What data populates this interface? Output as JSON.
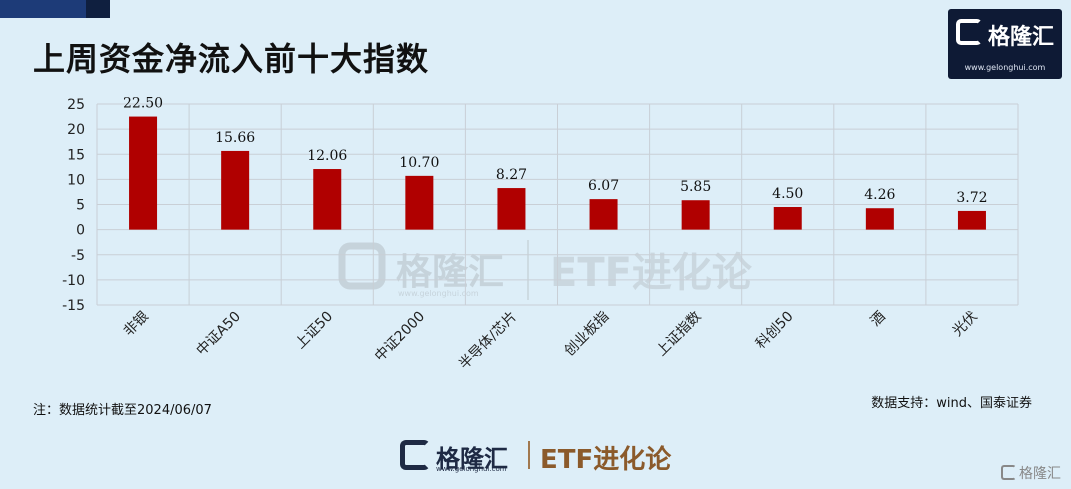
{
  "header": {
    "title": "上周资金净流入前十大指数"
  },
  "logo": {
    "name": "格隆汇",
    "url": "www.gelonghui.com"
  },
  "chart_data": {
    "type": "bar",
    "title": "上周资金净流入前十大指数",
    "categories": [
      "非银",
      "中证A50",
      "上证50",
      "中证2000",
      "半导体/芯片",
      "创业板指",
      "上证指数",
      "科创50",
      "酒",
      "光伏"
    ],
    "values": [
      22.5,
      15.66,
      12.06,
      10.7,
      8.27,
      6.07,
      5.85,
      4.5,
      4.26,
      3.72
    ],
    "value_labels": [
      "22.50",
      "15.66",
      "12.06",
      "10.70",
      "8.27",
      "6.07",
      "5.85",
      "4.50",
      "4.26",
      "3.72"
    ],
    "yticks": [
      "25",
      "20",
      "15",
      "10",
      "5",
      "0",
      "-5",
      "-10",
      "-15"
    ],
    "ylim": [
      -15,
      25
    ],
    "grid": true,
    "bar_color": "#b00000"
  },
  "watermark": {
    "name": "格隆汇",
    "url": "www.gelonghui.com",
    "etf": "ETF进化论"
  },
  "note": "注：数据统计截至2024/06/07",
  "source": "数据支持：wind、国泰证券",
  "footer": {
    "name": "格隆汇",
    "url": "www.gelonghui.com",
    "etf": "ETF进化论"
  },
  "corner": {
    "name": "格隆汇"
  }
}
